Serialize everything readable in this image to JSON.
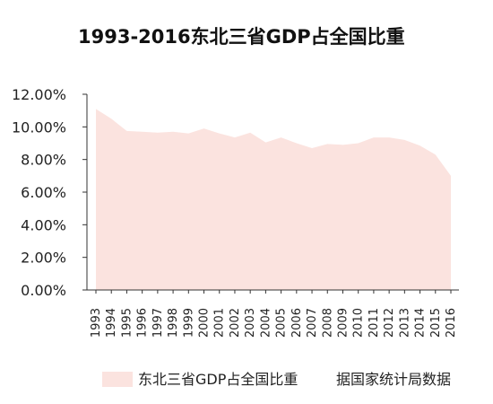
{
  "chart_data": {
    "type": "area",
    "title": "1993-2016东北三省GDP占全国比重",
    "x": [
      "1993",
      "1994",
      "1995",
      "1996",
      "1997",
      "1998",
      "1999",
      "2000",
      "2001",
      "2002",
      "2003",
      "2004",
      "2005",
      "2006",
      "2007",
      "2008",
      "2009",
      "2010",
      "2011",
      "2012",
      "2013",
      "2014",
      "2015",
      "2016"
    ],
    "series": [
      {
        "name": "东北三省GDP占全国比重",
        "values": [
          11.1,
          10.5,
          9.75,
          9.7,
          9.65,
          9.7,
          9.6,
          9.9,
          9.6,
          9.35,
          9.65,
          9.05,
          9.35,
          9.0,
          8.7,
          8.95,
          8.9,
          9.0,
          9.35,
          9.35,
          9.2,
          8.85,
          8.3,
          7.0
        ],
        "color": "#fbe3df"
      }
    ],
    "ylim": [
      0,
      12
    ],
    "yticks": [
      "0.00%",
      "2.00%",
      "4.00%",
      "6.00%",
      "8.00%",
      "10.00%",
      "12.00%"
    ],
    "legend": {
      "position": "bottom-left",
      "label": "东北三省GDP占全国比重"
    },
    "grid": false
  },
  "source_note": "据国家统计局数据"
}
